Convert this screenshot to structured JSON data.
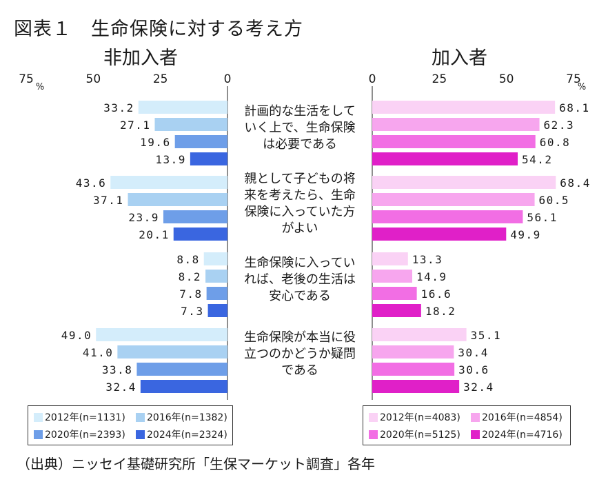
{
  "figure": {
    "title": "図表１　生命保険に対する考え方",
    "source": "（出典）ニッセイ基礎研究所「生保マーケット調査」各年"
  },
  "chart_data": [
    {
      "type": "bar",
      "orientation": "horizontal",
      "direction": "right-to-left",
      "panel_title": "非加入者",
      "xlim": [
        0,
        75
      ],
      "ticks": [
        "75",
        "50",
        "25",
        "0"
      ],
      "unit": "%",
      "categories": [
        "計画的な生活をしていく上で、生命保険は必要である",
        "親として子どもの将来を考えたら、生命保険に入っていた方がよい",
        "生命保険に入っていれば、老後の生活は安心である",
        "生命保険が本当に役立つのかどうか疑問である"
      ],
      "series": [
        {
          "name": "2012年(n=1131)",
          "color": "#d4edfb",
          "values": [
            33.2,
            43.6,
            8.8,
            49.0
          ]
        },
        {
          "name": "2016年(n=1382)",
          "color": "#a9d1f2",
          "values": [
            27.1,
            37.1,
            8.2,
            41.0
          ]
        },
        {
          "name": "2020年(n=2393)",
          "color": "#6e9ee8",
          "values": [
            19.6,
            23.9,
            7.8,
            33.8
          ]
        },
        {
          "name": "2024年(n=2324)",
          "color": "#3a66e0",
          "values": [
            13.9,
            20.1,
            7.3,
            32.4
          ]
        }
      ],
      "value_labels": [
        [
          "33.2",
          "43.6",
          "8.8",
          "49.0"
        ],
        [
          "27.1",
          "37.1",
          "8.2",
          "41.0"
        ],
        [
          "19.6",
          "23.9",
          "7.8",
          "33.8"
        ],
        [
          "13.9",
          "20.1",
          "7.3",
          "32.4"
        ]
      ],
      "legend_placement": "bottom-left",
      "grid": false
    },
    {
      "type": "bar",
      "orientation": "horizontal",
      "direction": "left-to-right",
      "panel_title": "加入者",
      "xlim": [
        0,
        75
      ],
      "ticks": [
        "0",
        "25",
        "50",
        "75"
      ],
      "unit": "%",
      "categories": [
        "計画的な生活をしていく上で、生命保険は必要である",
        "親として子どもの将来を考えたら、生命保険に入っていた方がよい",
        "生命保険に入っていれば、老後の生活は安心である",
        "生命保険が本当に役立つのかどうか疑問である"
      ],
      "series": [
        {
          "name": "2012年(n=4083)",
          "color": "#fad2f5",
          "values": [
            68.1,
            68.4,
            13.3,
            35.1
          ]
        },
        {
          "name": "2016年(n=4854)",
          "color": "#f7a6ee",
          "values": [
            62.3,
            60.5,
            14.9,
            30.4
          ]
        },
        {
          "name": "2020年(n=5125)",
          "color": "#f26ee4",
          "values": [
            60.8,
            56.1,
            16.6,
            30.6
          ]
        },
        {
          "name": "2024年(n=4716)",
          "color": "#e020c8",
          "values": [
            54.2,
            49.9,
            18.2,
            32.4
          ]
        }
      ],
      "value_labels": [
        [
          "68.1",
          "68.4",
          "13.3",
          "35.1"
        ],
        [
          "62.3",
          "60.5",
          "14.9",
          "30.4"
        ],
        [
          "60.8",
          "56.1",
          "16.6",
          "30.6"
        ],
        [
          "54.2",
          "49.9",
          "18.2",
          "32.4"
        ]
      ],
      "legend_placement": "bottom-right",
      "grid": false
    }
  ],
  "category_label_lines": [
    [
      "計画的な生活をして",
      "いく上で、生命保険",
      "は必要である"
    ],
    [
      "親として子どもの将",
      "来を考えたら、生命",
      "保険に入っていた方",
      "がよい"
    ],
    [
      "生命保険に入ってい",
      "れば、老後の生活は",
      "安心である"
    ],
    [
      "生命保険が本当に役",
      "立つのかどうか疑問",
      "である"
    ]
  ]
}
